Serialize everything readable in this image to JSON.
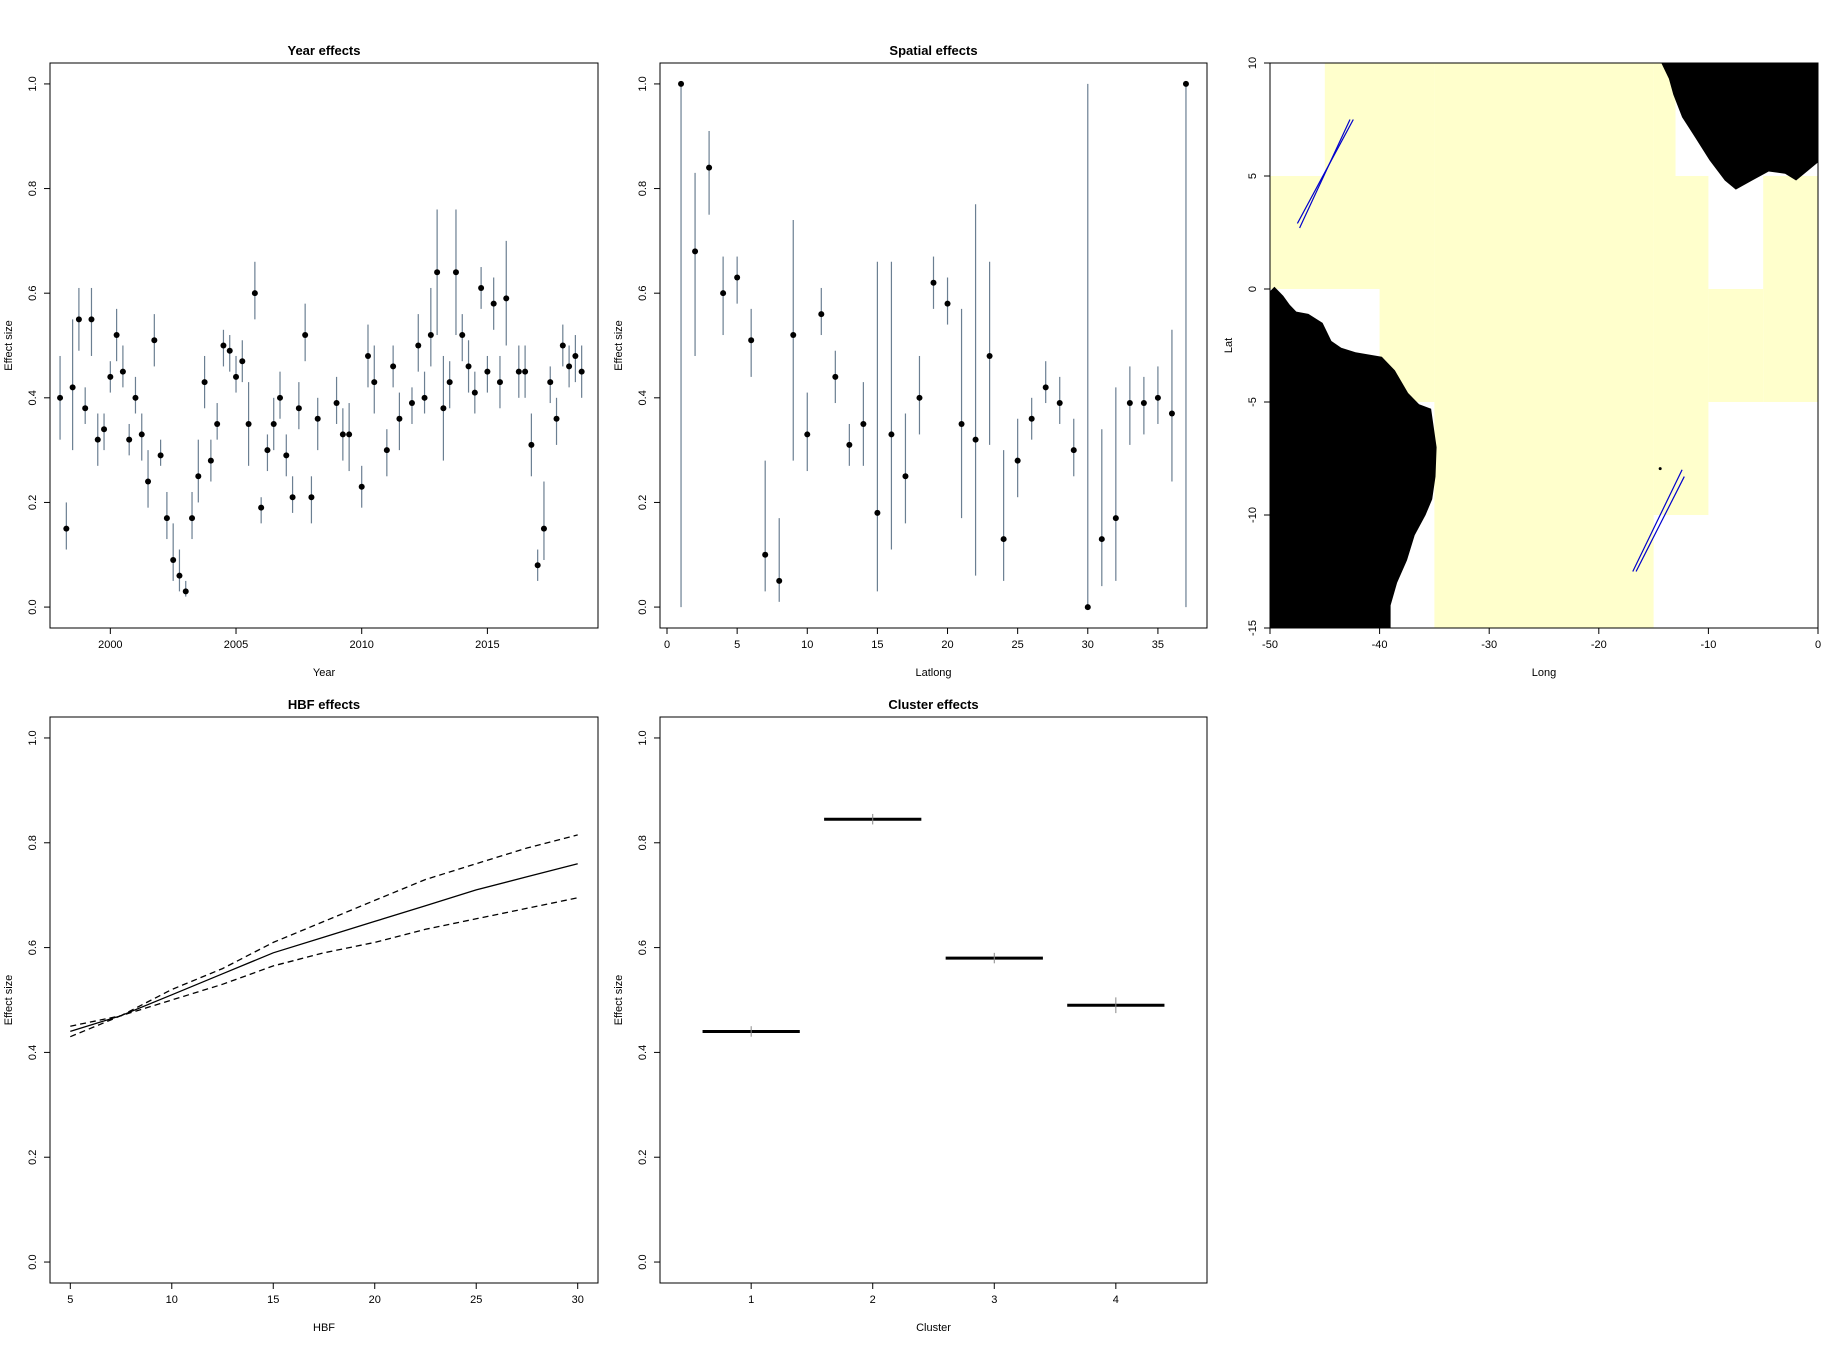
{
  "colors": {
    "ci": "#6b7f92",
    "sea": "#ffffcc",
    "land": "#000000",
    "track": "#0000cc",
    "frame": "#000000"
  },
  "chart_data": [
    {
      "id": "year",
      "type": "scatter",
      "title": "Year effects",
      "xlabel": "Year",
      "ylabel": "Effect size",
      "xlim": [
        1997.6,
        2019.4
      ],
      "ylim": [
        -0.04,
        1.04
      ],
      "xticks": [
        2000,
        2005,
        2010,
        2015
      ],
      "yticks": [
        0.0,
        0.2,
        0.4,
        0.6,
        0.8,
        1.0
      ],
      "points": [
        {
          "x": 1998.0,
          "y": 0.4,
          "lo": 0.32,
          "hi": 0.48
        },
        {
          "x": 1998.25,
          "y": 0.15,
          "lo": 0.11,
          "hi": 0.2
        },
        {
          "x": 1998.5,
          "y": 0.42,
          "lo": 0.3,
          "hi": 0.55
        },
        {
          "x": 1998.75,
          "y": 0.55,
          "lo": 0.49,
          "hi": 0.61
        },
        {
          "x": 1999.0,
          "y": 0.38,
          "lo": 0.35,
          "hi": 0.42
        },
        {
          "x": 1999.25,
          "y": 0.55,
          "lo": 0.48,
          "hi": 0.61
        },
        {
          "x": 1999.5,
          "y": 0.32,
          "lo": 0.27,
          "hi": 0.37
        },
        {
          "x": 1999.75,
          "y": 0.34,
          "lo": 0.3,
          "hi": 0.37
        },
        {
          "x": 2000.0,
          "y": 0.44,
          "lo": 0.41,
          "hi": 0.47
        },
        {
          "x": 2000.25,
          "y": 0.52,
          "lo": 0.47,
          "hi": 0.57
        },
        {
          "x": 2000.5,
          "y": 0.45,
          "lo": 0.42,
          "hi": 0.5
        },
        {
          "x": 2000.75,
          "y": 0.32,
          "lo": 0.29,
          "hi": 0.35
        },
        {
          "x": 2001.0,
          "y": 0.4,
          "lo": 0.37,
          "hi": 0.44
        },
        {
          "x": 2001.25,
          "y": 0.33,
          "lo": 0.28,
          "hi": 0.37
        },
        {
          "x": 2001.5,
          "y": 0.24,
          "lo": 0.19,
          "hi": 0.3
        },
        {
          "x": 2001.75,
          "y": 0.51,
          "lo": 0.46,
          "hi": 0.56
        },
        {
          "x": 2002.0,
          "y": 0.29,
          "lo": 0.27,
          "hi": 0.32
        },
        {
          "x": 2002.25,
          "y": 0.17,
          "lo": 0.13,
          "hi": 0.22
        },
        {
          "x": 2002.5,
          "y": 0.09,
          "lo": 0.05,
          "hi": 0.16
        },
        {
          "x": 2002.75,
          "y": 0.06,
          "lo": 0.03,
          "hi": 0.11
        },
        {
          "x": 2003.0,
          "y": 0.03,
          "lo": 0.02,
          "hi": 0.05
        },
        {
          "x": 2003.25,
          "y": 0.17,
          "lo": 0.13,
          "hi": 0.22
        },
        {
          "x": 2003.5,
          "y": 0.25,
          "lo": 0.2,
          "hi": 0.32
        },
        {
          "x": 2003.75,
          "y": 0.43,
          "lo": 0.38,
          "hi": 0.48
        },
        {
          "x": 2004.0,
          "y": 0.28,
          "lo": 0.24,
          "hi": 0.32
        },
        {
          "x": 2004.25,
          "y": 0.35,
          "lo": 0.32,
          "hi": 0.39
        },
        {
          "x": 2004.5,
          "y": 0.5,
          "lo": 0.46,
          "hi": 0.53
        },
        {
          "x": 2004.75,
          "y": 0.49,
          "lo": 0.45,
          "hi": 0.52
        },
        {
          "x": 2005.0,
          "y": 0.44,
          "lo": 0.41,
          "hi": 0.48
        },
        {
          "x": 2005.25,
          "y": 0.47,
          "lo": 0.43,
          "hi": 0.51
        },
        {
          "x": 2005.5,
          "y": 0.35,
          "lo": 0.27,
          "hi": 0.43
        },
        {
          "x": 2005.75,
          "y": 0.6,
          "lo": 0.55,
          "hi": 0.66
        },
        {
          "x": 2006.0,
          "y": 0.19,
          "lo": 0.16,
          "hi": 0.21
        },
        {
          "x": 2006.25,
          "y": 0.3,
          "lo": 0.26,
          "hi": 0.33
        },
        {
          "x": 2006.5,
          "y": 0.35,
          "lo": 0.3,
          "hi": 0.4
        },
        {
          "x": 2006.75,
          "y": 0.4,
          "lo": 0.36,
          "hi": 0.45
        },
        {
          "x": 2007.0,
          "y": 0.29,
          "lo": 0.25,
          "hi": 0.33
        },
        {
          "x": 2007.25,
          "y": 0.21,
          "lo": 0.18,
          "hi": 0.25
        },
        {
          "x": 2007.5,
          "y": 0.38,
          "lo": 0.34,
          "hi": 0.43
        },
        {
          "x": 2007.75,
          "y": 0.52,
          "lo": 0.47,
          "hi": 0.58
        },
        {
          "x": 2008.0,
          "y": 0.21,
          "lo": 0.16,
          "hi": 0.25
        },
        {
          "x": 2008.25,
          "y": 0.36,
          "lo": 0.3,
          "hi": 0.4
        },
        {
          "x": 2009.0,
          "y": 0.39,
          "lo": 0.35,
          "hi": 0.44
        },
        {
          "x": 2009.25,
          "y": 0.33,
          "lo": 0.28,
          "hi": 0.38
        },
        {
          "x": 2009.5,
          "y": 0.33,
          "lo": 0.26,
          "hi": 0.39
        },
        {
          "x": 2010.0,
          "y": 0.23,
          "lo": 0.19,
          "hi": 0.27
        },
        {
          "x": 2010.25,
          "y": 0.48,
          "lo": 0.42,
          "hi": 0.54
        },
        {
          "x": 2010.5,
          "y": 0.43,
          "lo": 0.37,
          "hi": 0.5
        },
        {
          "x": 2011.0,
          "y": 0.3,
          "lo": 0.25,
          "hi": 0.34
        },
        {
          "x": 2011.25,
          "y": 0.46,
          "lo": 0.42,
          "hi": 0.5
        },
        {
          "x": 2011.5,
          "y": 0.36,
          "lo": 0.3,
          "hi": 0.41
        },
        {
          "x": 2012.0,
          "y": 0.39,
          "lo": 0.35,
          "hi": 0.42
        },
        {
          "x": 2012.25,
          "y": 0.5,
          "lo": 0.45,
          "hi": 0.56
        },
        {
          "x": 2012.5,
          "y": 0.4,
          "lo": 0.37,
          "hi": 0.45
        },
        {
          "x": 2012.75,
          "y": 0.52,
          "lo": 0.46,
          "hi": 0.61
        },
        {
          "x": 2013.0,
          "y": 0.64,
          "lo": 0.52,
          "hi": 0.76
        },
        {
          "x": 2013.25,
          "y": 0.38,
          "lo": 0.28,
          "hi": 0.48
        },
        {
          "x": 2013.5,
          "y": 0.43,
          "lo": 0.38,
          "hi": 0.47
        },
        {
          "x": 2013.75,
          "y": 0.64,
          "lo": 0.52,
          "hi": 0.76
        },
        {
          "x": 2014.0,
          "y": 0.52,
          "lo": 0.47,
          "hi": 0.56
        },
        {
          "x": 2014.25,
          "y": 0.46,
          "lo": 0.41,
          "hi": 0.51
        },
        {
          "x": 2014.5,
          "y": 0.41,
          "lo": 0.37,
          "hi": 0.45
        },
        {
          "x": 2014.75,
          "y": 0.61,
          "lo": 0.57,
          "hi": 0.65
        },
        {
          "x": 2015.0,
          "y": 0.45,
          "lo": 0.41,
          "hi": 0.48
        },
        {
          "x": 2015.25,
          "y": 0.58,
          "lo": 0.53,
          "hi": 0.63
        },
        {
          "x": 2015.5,
          "y": 0.43,
          "lo": 0.38,
          "hi": 0.48
        },
        {
          "x": 2015.75,
          "y": 0.59,
          "lo": 0.5,
          "hi": 0.7
        },
        {
          "x": 2016.25,
          "y": 0.45,
          "lo": 0.4,
          "hi": 0.5
        },
        {
          "x": 2016.5,
          "y": 0.45,
          "lo": 0.4,
          "hi": 0.5
        },
        {
          "x": 2016.75,
          "y": 0.31,
          "lo": 0.25,
          "hi": 0.37
        },
        {
          "x": 2017.0,
          "y": 0.08,
          "lo": 0.05,
          "hi": 0.11
        },
        {
          "x": 2017.25,
          "y": 0.15,
          "lo": 0.09,
          "hi": 0.24
        },
        {
          "x": 2017.5,
          "y": 0.43,
          "lo": 0.39,
          "hi": 0.46
        },
        {
          "x": 2017.75,
          "y": 0.36,
          "lo": 0.31,
          "hi": 0.4
        },
        {
          "x": 2018.0,
          "y": 0.5,
          "lo": 0.46,
          "hi": 0.54
        },
        {
          "x": 2018.25,
          "y": 0.46,
          "lo": 0.42,
          "hi": 0.5
        },
        {
          "x": 2018.5,
          "y": 0.48,
          "lo": 0.43,
          "hi": 0.52
        },
        {
          "x": 2018.75,
          "y": 0.45,
          "lo": 0.4,
          "hi": 0.5
        }
      ]
    },
    {
      "id": "spatial",
      "type": "scatter",
      "title": "Spatial effects",
      "xlabel": "Latlong",
      "ylabel": "Effect size",
      "xlim": [
        -0.5,
        38.5
      ],
      "ylim": [
        -0.04,
        1.04
      ],
      "xticks": [
        0,
        5,
        10,
        15,
        20,
        25,
        30,
        35
      ],
      "yticks": [
        0.0,
        0.2,
        0.4,
        0.6,
        0.8,
        1.0
      ],
      "points": [
        {
          "x": 1,
          "y": 1.0,
          "lo": 0.0,
          "hi": 1.0
        },
        {
          "x": 2,
          "y": 0.68,
          "lo": 0.48,
          "hi": 0.83
        },
        {
          "x": 3,
          "y": 0.84,
          "lo": 0.75,
          "hi": 0.91
        },
        {
          "x": 4,
          "y": 0.6,
          "lo": 0.52,
          "hi": 0.67
        },
        {
          "x": 5,
          "y": 0.63,
          "lo": 0.58,
          "hi": 0.67
        },
        {
          "x": 6,
          "y": 0.51,
          "lo": 0.44,
          "hi": 0.57
        },
        {
          "x": 7,
          "y": 0.1,
          "lo": 0.03,
          "hi": 0.28
        },
        {
          "x": 8,
          "y": 0.05,
          "lo": 0.01,
          "hi": 0.17
        },
        {
          "x": 9,
          "y": 0.52,
          "lo": 0.28,
          "hi": 0.74
        },
        {
          "x": 10,
          "y": 0.33,
          "lo": 0.26,
          "hi": 0.41
        },
        {
          "x": 11,
          "y": 0.56,
          "lo": 0.52,
          "hi": 0.61
        },
        {
          "x": 12,
          "y": 0.44,
          "lo": 0.39,
          "hi": 0.49
        },
        {
          "x": 13,
          "y": 0.31,
          "lo": 0.27,
          "hi": 0.35
        },
        {
          "x": 14,
          "y": 0.35,
          "lo": 0.27,
          "hi": 0.43
        },
        {
          "x": 15,
          "y": 0.18,
          "lo": 0.03,
          "hi": 0.66
        },
        {
          "x": 16,
          "y": 0.33,
          "lo": 0.11,
          "hi": 0.66
        },
        {
          "x": 17,
          "y": 0.25,
          "lo": 0.16,
          "hi": 0.37
        },
        {
          "x": 18,
          "y": 0.4,
          "lo": 0.33,
          "hi": 0.48
        },
        {
          "x": 19,
          "y": 0.62,
          "lo": 0.57,
          "hi": 0.67
        },
        {
          "x": 20,
          "y": 0.58,
          "lo": 0.54,
          "hi": 0.63
        },
        {
          "x": 21,
          "y": 0.35,
          "lo": 0.17,
          "hi": 0.57
        },
        {
          "x": 22,
          "y": 0.32,
          "lo": 0.06,
          "hi": 0.77
        },
        {
          "x": 23,
          "y": 0.48,
          "lo": 0.31,
          "hi": 0.66
        },
        {
          "x": 24,
          "y": 0.13,
          "lo": 0.05,
          "hi": 0.3
        },
        {
          "x": 25,
          "y": 0.28,
          "lo": 0.21,
          "hi": 0.36
        },
        {
          "x": 26,
          "y": 0.36,
          "lo": 0.32,
          "hi": 0.4
        },
        {
          "x": 27,
          "y": 0.42,
          "lo": 0.39,
          "hi": 0.47
        },
        {
          "x": 28,
          "y": 0.39,
          "lo": 0.35,
          "hi": 0.44
        },
        {
          "x": 29,
          "y": 0.3,
          "lo": 0.25,
          "hi": 0.36
        },
        {
          "x": 30,
          "y": 0.0,
          "lo": 0.0,
          "hi": 1.0
        },
        {
          "x": 31,
          "y": 0.13,
          "lo": 0.04,
          "hi": 0.34
        },
        {
          "x": 32,
          "y": 0.17,
          "lo": 0.05,
          "hi": 0.42
        },
        {
          "x": 33,
          "y": 0.39,
          "lo": 0.31,
          "hi": 0.46
        },
        {
          "x": 34,
          "y": 0.39,
          "lo": 0.33,
          "hi": 0.44
        },
        {
          "x": 35,
          "y": 0.4,
          "lo": 0.35,
          "hi": 0.46
        },
        {
          "x": 36,
          "y": 0.37,
          "lo": 0.24,
          "hi": 0.53
        },
        {
          "x": 37,
          "y": 1.0,
          "lo": 0.0,
          "hi": 1.0
        }
      ]
    },
    {
      "id": "map",
      "type": "map",
      "title": "",
      "xlabel": "Long",
      "ylabel": "Lat",
      "xlim": [
        -50,
        0
      ],
      "ylim": [
        -15,
        10
      ],
      "xticks": [
        -50,
        -40,
        -30,
        -20,
        -10,
        0
      ],
      "yticks": [
        -15,
        -10,
        -5,
        0,
        5,
        10
      ],
      "cells": [
        {
          "x0": -45,
          "x1": -35,
          "y0": 5,
          "y1": 10
        },
        {
          "x0": -50,
          "x1": -35,
          "y0": 0,
          "y1": 5
        },
        {
          "x0": -40,
          "x1": -35,
          "y0": -5,
          "y1": 0
        },
        {
          "x0": -35,
          "x1": -15,
          "y0": -15,
          "y1": 10
        },
        {
          "x0": -15,
          "x1": -10,
          "y0": -10,
          "y1": 5
        },
        {
          "x0": -10,
          "x1": -5,
          "y0": -5,
          "y1": 0
        },
        {
          "x0": -5,
          "x1": 0,
          "y0": -5,
          "y1": 5
        },
        {
          "x0": -15,
          "x1": -13,
          "y0": 5,
          "y1": 10
        }
      ],
      "tracks": [
        [
          [
            -47.5,
            2.9
          ],
          [
            -42.4,
            7.5
          ]
        ],
        [
          [
            -47.3,
            2.7
          ],
          [
            -42.7,
            7.5
          ]
        ],
        [
          [
            -16.9,
            -12.5
          ],
          [
            -12.4,
            -8.0
          ]
        ],
        [
          [
            -16.6,
            -12.5
          ],
          [
            -12.2,
            -8.3
          ]
        ]
      ]
    },
    {
      "id": "hbf",
      "type": "line",
      "title": "HBF effects",
      "xlabel": "HBF",
      "ylabel": "Effect size",
      "xlim": [
        4,
        31
      ],
      "ylim": [
        -0.04,
        1.04
      ],
      "xticks": [
        5,
        10,
        15,
        20,
        25,
        30
      ],
      "yticks": [
        0.0,
        0.2,
        0.4,
        0.6,
        0.8,
        1.0
      ],
      "x": [
        5,
        7.5,
        10,
        12.5,
        15,
        17.5,
        20,
        22.5,
        25,
        27.5,
        30
      ],
      "series": [
        {
          "style": "solid",
          "values": [
            0.44,
            0.47,
            0.51,
            0.55,
            0.59,
            0.62,
            0.65,
            0.68,
            0.71,
            0.735,
            0.76
          ]
        },
        {
          "style": "dashed",
          "values": [
            0.45,
            0.47,
            0.52,
            0.56,
            0.61,
            0.65,
            0.69,
            0.73,
            0.76,
            0.79,
            0.815
          ]
        },
        {
          "style": "dashed",
          "values": [
            0.43,
            0.47,
            0.5,
            0.53,
            0.565,
            0.59,
            0.61,
            0.635,
            0.655,
            0.675,
            0.695
          ]
        }
      ]
    },
    {
      "id": "cluster",
      "type": "bar",
      "title": "Cluster effects",
      "xlabel": "Cluster",
      "ylabel": "Effect size",
      "xlim": [
        0.25,
        4.75
      ],
      "ylim": [
        -0.04,
        1.04
      ],
      "categories": [
        "1",
        "2",
        "3",
        "4"
      ],
      "yticks": [
        0.0,
        0.2,
        0.4,
        0.6,
        0.8,
        1.0
      ],
      "points": [
        {
          "x": 1,
          "y": 0.44,
          "lo": 0.43,
          "hi": 0.45
        },
        {
          "x": 2,
          "y": 0.845,
          "lo": 0.835,
          "hi": 0.855
        },
        {
          "x": 3,
          "y": 0.58,
          "lo": 0.57,
          "hi": 0.59
        },
        {
          "x": 4,
          "y": 0.49,
          "lo": 0.475,
          "hi": 0.505
        }
      ]
    }
  ]
}
